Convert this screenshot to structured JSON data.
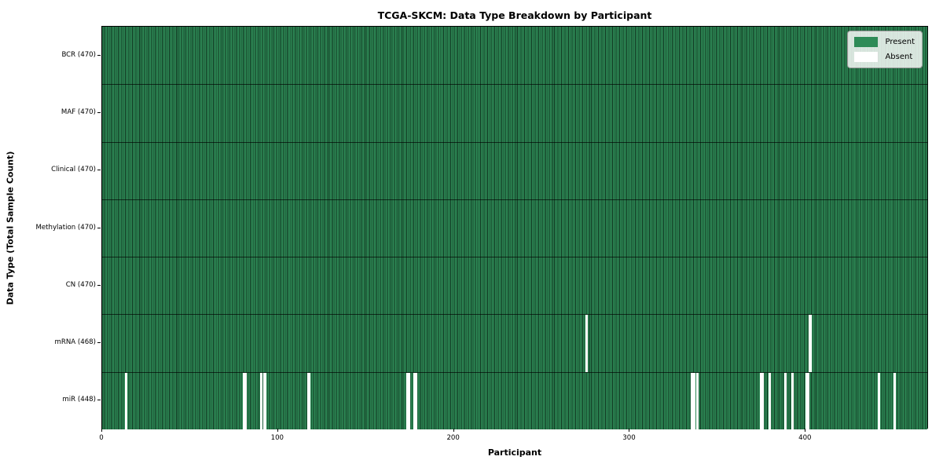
{
  "title": "TCGA-SKCM: Data Type Breakdown by Participant",
  "xlabel": "Participant",
  "ylabel": "Data Type (Total Sample Count)",
  "legend": {
    "present_label": "Present",
    "absent_label": "Absent"
  },
  "colors": {
    "present": "#2e8b57",
    "absent": "#ffffff",
    "cell_edge": "rgba(8,28,16,0.78)",
    "row_divider": "rgba(0,0,0,0.65)",
    "axis": "#000000"
  },
  "chart_data": {
    "type": "heatmap",
    "title": "TCGA-SKCM: Data Type Breakdown by Participant",
    "xlabel": "Participant",
    "ylabel": "Data Type (Total Sample Count)",
    "n_participants": 470,
    "x_ticks": [
      0,
      100,
      200,
      300,
      400
    ],
    "legend_entries": [
      "Present",
      "Absent"
    ],
    "legend_position": "upper right",
    "rows": [
      {
        "label": "BCR (470)",
        "total": 470,
        "absent": []
      },
      {
        "label": "MAF (470)",
        "total": 470,
        "absent": []
      },
      {
        "label": "Clinical (470)",
        "total": 470,
        "absent": []
      },
      {
        "label": "Methylation (470)",
        "total": 470,
        "absent": []
      },
      {
        "label": "CN (470)",
        "total": 470,
        "absent": []
      },
      {
        "label": "mRNA (468)",
        "total": 468,
        "absent": [
          275,
          402
        ]
      },
      {
        "label": "miR (448)",
        "total": 448,
        "absent": [
          13,
          80,
          81,
          90,
          92,
          117,
          173,
          174,
          177,
          178,
          335,
          336,
          338,
          374,
          375,
          379,
          388,
          392,
          400,
          401,
          441,
          450
        ]
      }
    ]
  }
}
